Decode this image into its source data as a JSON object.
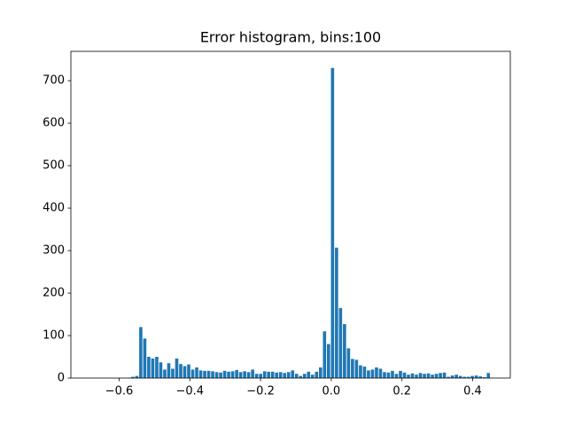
{
  "chart_data": {
    "type": "histogram",
    "title": "Error histogram, bins:100",
    "color": "#1f77b4",
    "bins": [
      -0.68,
      -0.6687,
      -0.6574,
      -0.6461,
      -0.6348,
      -0.6235,
      -0.6122,
      -0.6009,
      -0.5896,
      -0.5783,
      -0.567,
      -0.5557,
      -0.5444,
      -0.5331,
      -0.5218,
      -0.5105,
      -0.4992,
      -0.4879,
      -0.4766,
      -0.4653,
      -0.454,
      -0.4427,
      -0.4314,
      -0.4201,
      -0.4088,
      -0.3975,
      -0.3862,
      -0.3749,
      -0.3636,
      -0.3523,
      -0.341,
      -0.3297,
      -0.3184,
      -0.3071,
      -0.2958,
      -0.2845,
      -0.2732,
      -0.2619,
      -0.2506,
      -0.2393,
      -0.228,
      -0.2167,
      -0.2054,
      -0.1941,
      -0.1828,
      -0.1715,
      -0.1602,
      -0.1489,
      -0.1376,
      -0.1263,
      -0.115,
      -0.1037,
      -0.0924,
      -0.0811,
      -0.0698,
      -0.0585,
      -0.0472,
      -0.0359,
      -0.0246,
      -0.0133,
      -0.002,
      0.0093,
      0.0206,
      0.0319,
      0.0432,
      0.0545,
      0.0658,
      0.0771,
      0.0884,
      0.0997,
      0.111,
      0.1223,
      0.1336,
      0.1449,
      0.1562,
      0.1675,
      0.1788,
      0.1901,
      0.2014,
      0.2127,
      0.224,
      0.2353,
      0.2466,
      0.2579,
      0.2692,
      0.2805,
      0.2918,
      0.3031,
      0.3144,
      0.3257,
      0.337,
      0.3483,
      0.3596,
      0.3709,
      0.3822,
      0.3935,
      0.4048,
      0.4161,
      0.4274,
      0.4387,
      0.45
    ],
    "values": [
      0,
      0,
      0,
      0,
      0,
      0,
      0,
      0,
      0,
      1,
      3,
      5,
      120,
      93,
      50,
      46,
      50,
      37,
      20,
      35,
      22,
      46,
      33,
      28,
      32,
      20,
      25,
      18,
      17,
      17,
      16,
      14,
      13,
      17,
      15,
      16,
      19,
      14,
      16,
      14,
      20,
      10,
      10,
      16,
      15,
      15,
      13,
      14,
      12,
      14,
      18,
      10,
      5,
      10,
      15,
      8,
      15,
      25,
      110,
      80,
      730,
      307,
      165,
      127,
      70,
      45,
      43,
      30,
      27,
      18,
      20,
      25,
      22,
      14,
      13,
      17,
      10,
      17,
      13,
      8,
      11,
      8,
      12,
      10,
      11,
      8,
      10,
      12,
      13,
      3,
      6,
      8,
      5,
      3,
      3,
      5,
      6,
      4,
      2,
      12
    ],
    "xlim": [
      -0.7365,
      0.5065
    ],
    "xticks": [
      {
        "value": -0.6,
        "label": "−0.6"
      },
      {
        "value": -0.4,
        "label": "−0.4"
      },
      {
        "value": -0.2,
        "label": "−0.2"
      },
      {
        "value": 0,
        "label": "0.0"
      },
      0.2,
      0.4
    ],
    "ylim": [
      0,
      769
    ],
    "yticks": [
      0,
      100,
      200,
      300,
      400,
      500,
      600,
      700
    ]
  }
}
